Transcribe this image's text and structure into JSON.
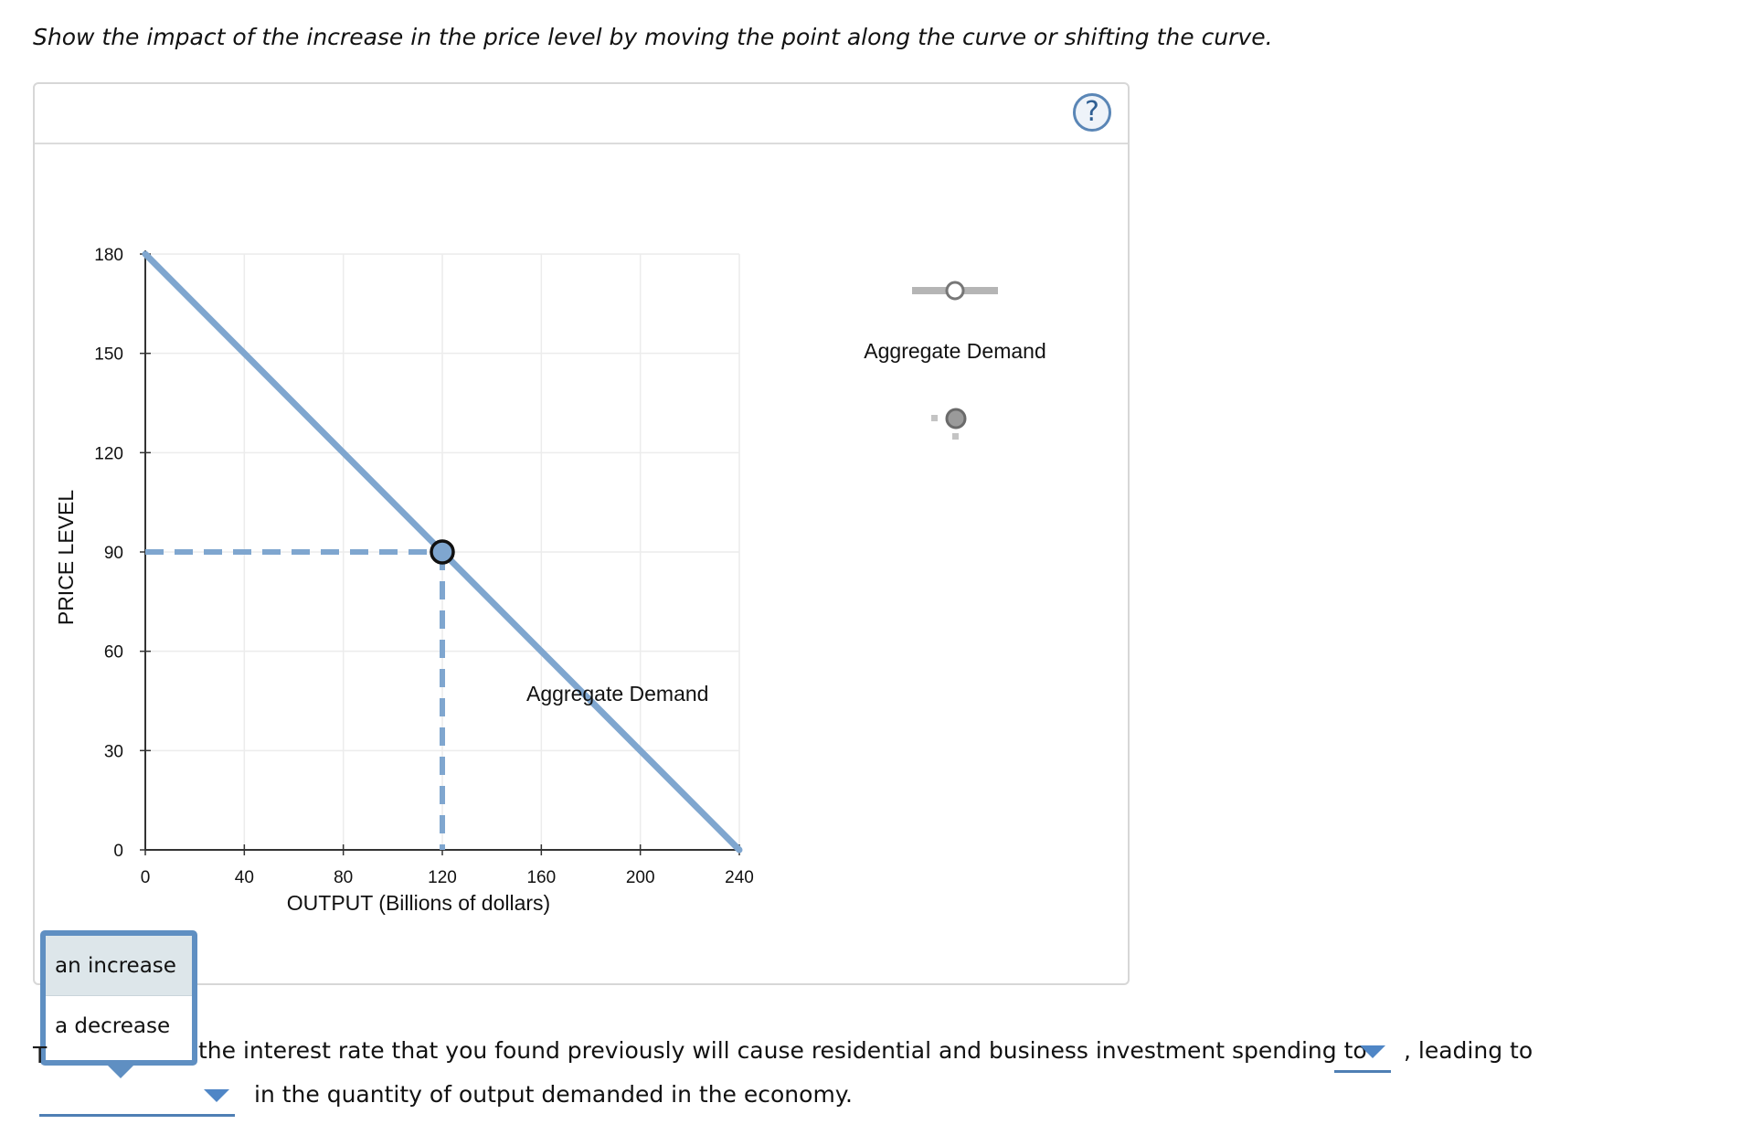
{
  "instruction": "Show the impact of the increase in the price level by moving the point along the curve or shifting the curve.",
  "help_label": "?",
  "chart_data": {
    "type": "line",
    "xlabel": "OUTPUT (Billions of dollars)",
    "ylabel": "PRICE LEVEL",
    "xlim": [
      0,
      240
    ],
    "ylim": [
      0,
      180
    ],
    "x_ticks": [
      0,
      40,
      80,
      120,
      160,
      200,
      240
    ],
    "y_ticks": [
      0,
      30,
      60,
      90,
      120,
      150,
      180
    ],
    "grid": true,
    "series": [
      {
        "name": "Aggregate Demand",
        "x": [
          0,
          240
        ],
        "y": [
          180,
          0
        ],
        "color": "#7fa6cf"
      }
    ],
    "point": {
      "x": 120,
      "y": 90
    },
    "curve_label": "Aggregate Demand"
  },
  "toolbox": {
    "line_tool_label": "Aggregate Demand"
  },
  "dropdown": {
    "options": [
      "an increase",
      "a decrease"
    ],
    "selected": "an increase"
  },
  "sentence": {
    "start_peek": "T",
    "part1": "the interest rate that you found previously will cause residential and business investment spending to",
    "part2": ", leading to",
    "part3": "in the quantity of output demanded in the economy."
  }
}
